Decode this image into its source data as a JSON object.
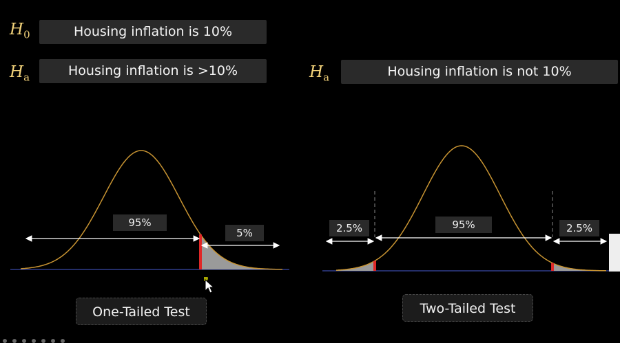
{
  "hypotheses": {
    "null": {
      "symbol": "H",
      "sub": "0",
      "text": "Housing inflation is 10%"
    },
    "alt_one": {
      "symbol": "H",
      "sub": "a",
      "text": "Housing inflation is >10%"
    },
    "alt_two": {
      "symbol": "H",
      "sub": "a",
      "text": "Housing inflation is not 10%"
    }
  },
  "one_tailed": {
    "label": "One-Tailed Test",
    "body_pct": "95%",
    "tail_pct": "5%"
  },
  "two_tailed": {
    "label": "Two-Tailed Test",
    "left_pct": "2.5%",
    "body_pct": "95%",
    "right_pct": "2.5%"
  },
  "colors": {
    "curve": "#c89432",
    "critical_line": "#e02828",
    "shade": "#9a9a9a",
    "baseline": "#3a4aa8",
    "accent_text": "#f2d27a"
  }
}
